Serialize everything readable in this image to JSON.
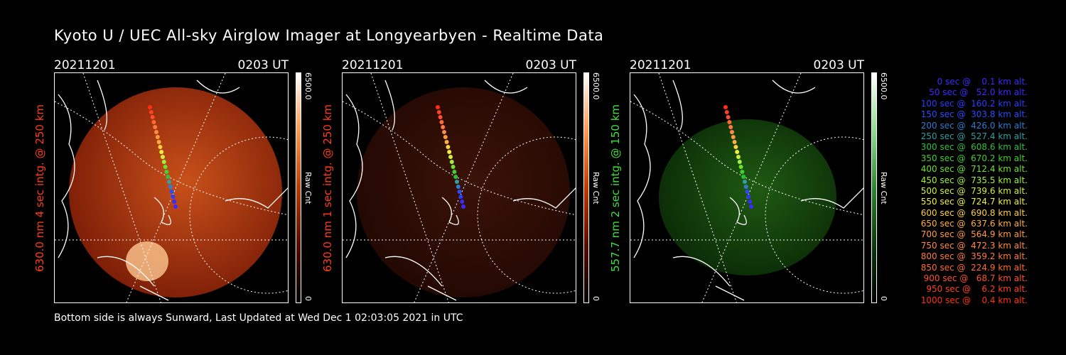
{
  "header": {
    "title": "Kyoto U / UEC All-sky Airglow Imager at Longyearbyen - Realtime Data"
  },
  "footer": {
    "text": "Bottom side is always Sunward, Last Updated at Wed Dec  1 02:03:05 2021 in UTC"
  },
  "panels": [
    {
      "date": "20211201",
      "time": "0203 UT",
      "ylabel": "630.0 nm 4 sec intg. @ 250 km",
      "ylabel_color": "#ff3b1a",
      "cbar_max": "6500.0",
      "cbar_min": "0",
      "cbar_label": "Raw Cnt",
      "tint": "red"
    },
    {
      "date": "20211201",
      "time": "0203 UT",
      "ylabel": "630.0 nm 1 sec intg. @ 250 km",
      "ylabel_color": "#ff3b1a",
      "cbar_max": "6500.0",
      "cbar_min": "0",
      "cbar_label": "Raw Cnt",
      "tint": "red"
    },
    {
      "date": "20211201",
      "time": "0203 UT",
      "ylabel": "557.7 nm 2 sec intg. @ 150 km",
      "ylabel_color": "#3ee03e",
      "cbar_max": "6500.0",
      "cbar_min": "0",
      "cbar_label": "Raw Cnt",
      "tint": "green"
    }
  ],
  "legend": [
    {
      "text": "   0 sec @    0.1 km alt.",
      "color": "#3a2cff"
    },
    {
      "text": "  50 sec @   52.0 km alt.",
      "color": "#3a2cff"
    },
    {
      "text": " 100 sec @  160.2 km alt.",
      "color": "#2a3cff"
    },
    {
      "text": " 150 sec @  303.8 km alt.",
      "color": "#2a4cff"
    },
    {
      "text": " 200 sec @  426.0 km alt.",
      "color": "#2f7cd0"
    },
    {
      "text": " 250 sec @  527.4 km alt.",
      "color": "#2fa0a0"
    },
    {
      "text": " 300 sec @  608.6 km alt.",
      "color": "#2fc040"
    },
    {
      "text": " 350 sec @  670.2 km alt.",
      "color": "#40d030"
    },
    {
      "text": " 400 sec @  712.4 km alt.",
      "color": "#70e030"
    },
    {
      "text": " 450 sec @  735.5 km alt.",
      "color": "#a0f040"
    },
    {
      "text": " 500 sec @  739.6 km alt.",
      "color": "#d0f040"
    },
    {
      "text": " 550 sec @  724.7 km alt.",
      "color": "#f0f040"
    },
    {
      "text": " 600 sec @  690.8 km alt.",
      "color": "#ffd040"
    },
    {
      "text": " 650 sec @  637.6 km alt.",
      "color": "#ffb040"
    },
    {
      "text": " 700 sec @  564.9 km alt.",
      "color": "#ff9a40"
    },
    {
      "text": " 750 sec @  472.3 km alt.",
      "color": "#ff8a40"
    },
    {
      "text": " 800 sec @  359.2 km alt.",
      "color": "#ff7a40"
    },
    {
      "text": " 850 sec @  224.9 km alt.",
      "color": "#ff6a30"
    },
    {
      "text": " 900 sec @   68.7 km alt.",
      "color": "#ff5030"
    },
    {
      "text": " 950 sec @    6.2 km alt.",
      "color": "#ff4020"
    },
    {
      "text": "1000 sec @    0.4 km alt.",
      "color": "#ff3010"
    }
  ]
}
